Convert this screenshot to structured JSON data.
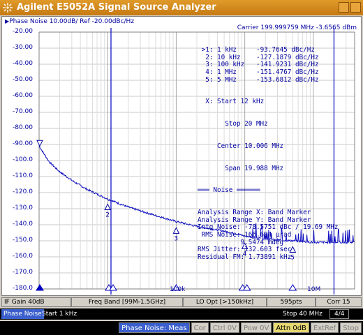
{
  "window": {
    "title": "Agilent E5052A Signal Source Analyzer"
  },
  "plot": {
    "trace_label": "Phase Noise 10.00dB/ Ref -20.00dBc/Hz",
    "carrier": "Carrier 199.999759 MHz    -3.6565 dBm",
    "y_ticks": [
      "-20.00",
      "-30.00",
      "-40.00",
      "-50.00",
      "-60.00",
      "-70.00",
      "-80.00",
      "-90.00",
      "-100.0",
      "-110.0",
      "-120.0",
      "-130.0",
      "-140.0",
      "-150.0",
      "-160.0",
      "-170.0",
      "-180.0"
    ],
    "x_labels": [
      "100k",
      "10M"
    ],
    "markers": [
      {
        "num": ">1:",
        "freq": "1 kHz",
        "value": "-93.7645 dBc/Hz"
      },
      {
        "num": "2:",
        "freq": "10 kHz",
        "value": "-127.1879 dBc/Hz"
      },
      {
        "num": "3:",
        "freq": "100 kHz",
        "value": "-141.9231 dBc/Hz"
      },
      {
        "num": "4:",
        "freq": "1 MHz",
        "value": "-151.4767 dBc/Hz"
      },
      {
        "num": "5:",
        "freq": "5 MHz",
        "value": "-153.6812 dBc/Hz"
      }
    ],
    "marker_labels": [
      "2",
      "3",
      "4",
      "5"
    ],
    "span_info": {
      "start": "X: Start 12 kHz",
      "stop": "Stop 20 MHz",
      "center": "Center 10.006 MHz",
      "span": "Span 19.988 MHz"
    },
    "noise_header": "Noise",
    "noise_info": [
      "Analysis Range X: Band Marker",
      "Analysis Range Y: Band Marker",
      "Intg Noise: -78.5751 dBc / 19.69 MHz",
      " RMS Noise: 166.634 µrad",
      "           9.5474 mdeg",
      "RMS Jitter: 132.603 fsec",
      "Residual FM: 1.73891 kHz"
    ]
  },
  "statusbar": {
    "if_gain": "IF Gain 40dB",
    "freq_band": "Freq Band [99M-1.5GHz]",
    "lo_opt": "LO Opt [>150kHz]",
    "points": "595pts",
    "corr": "Corr 15"
  },
  "sweep": {
    "mode": "Phase Noise",
    "start": "Start 1 kHz",
    "stop": "Stop 40 MHz",
    "page": "4/4"
  },
  "softkeys": {
    "meas": "Phase Noise: Meas",
    "cor": "Cor",
    "ctrl": "Ctrl",
    "ov1": "0V",
    "pow": "Pow",
    "ov2": "0V",
    "attn": "Attn 0dB",
    "extref": "ExtRef",
    "stop": "Stop"
  },
  "colors": {
    "trace": "#1010c0",
    "text": "#0000a0",
    "title_bar": "#d88a20"
  }
}
